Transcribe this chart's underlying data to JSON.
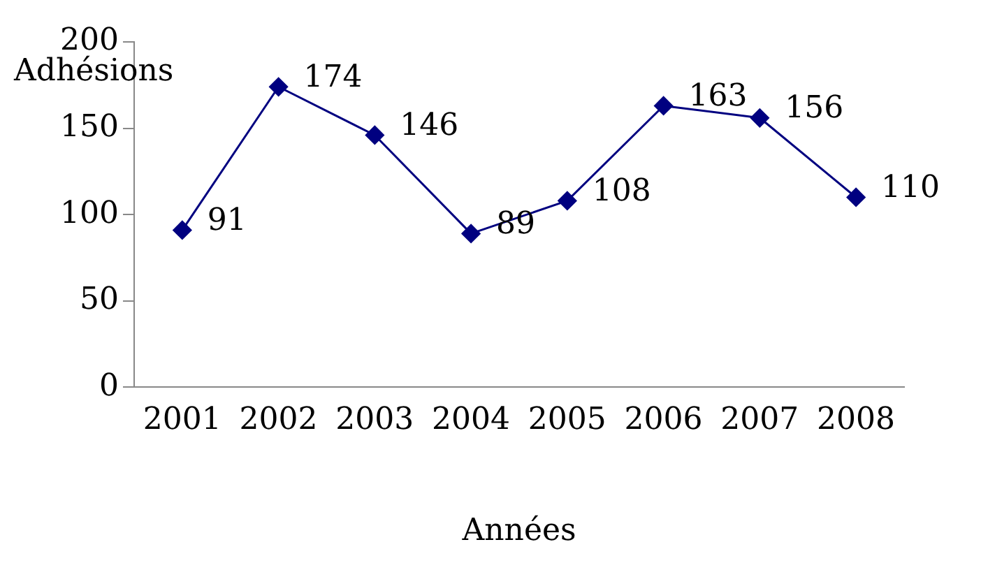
{
  "chart_data": {
    "type": "line",
    "xlabel": "Années",
    "ylabel": "Adhésions",
    "categories": [
      "2001",
      "2002",
      "2003",
      "2004",
      "2005",
      "2006",
      "2007",
      "2008"
    ],
    "series": [
      {
        "color": "#000080",
        "values": [
          91,
          174,
          146,
          89,
          108,
          163,
          156,
          110
        ]
      }
    ],
    "ylim": [
      0,
      200
    ],
    "yticks": [
      0,
      50,
      100,
      150,
      200
    ],
    "grid": false,
    "legend": false,
    "marker": "diamond",
    "line_style": "solid",
    "data_labels": true
  }
}
